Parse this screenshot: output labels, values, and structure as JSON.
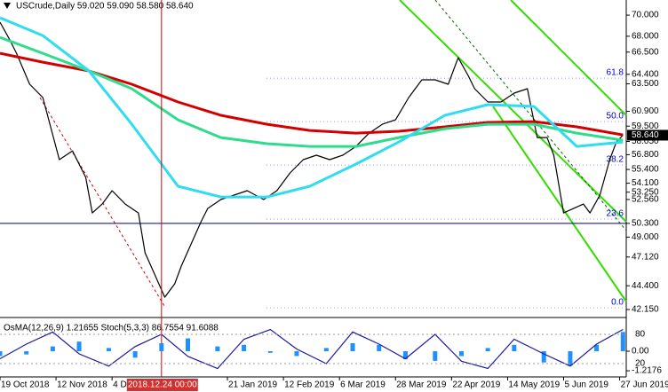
{
  "chart_data": [
    {
      "type": "line",
      "title": "USCrude,Daily  59.020 59.090 58.580 58.640",
      "xlim": [
        0,
        190
      ],
      "ylim": [
        41.48,
        71.43
      ],
      "xticks": [
        {
          "value": 0,
          "label": "19 Oct 2018"
        },
        {
          "value": 17,
          "label": "12 Nov 2018"
        },
        {
          "value": 34,
          "label": "4 Dec 2018"
        },
        {
          "value": 69,
          "label": "21 Jan 2019"
        },
        {
          "value": 86,
          "label": "12 Feb 2019"
        },
        {
          "value": 103,
          "label": "6 Mar 2019"
        },
        {
          "value": 120,
          "label": "28 Mar 2019"
        },
        {
          "value": 137,
          "label": "22 Apr 2019"
        },
        {
          "value": 154,
          "label": "14 May 2019"
        },
        {
          "value": 171,
          "label": "5 Jun 2019"
        },
        {
          "value": 188,
          "label": "27 Jun 2019"
        }
      ],
      "cursor": {
        "value": 49,
        "label": "2018.12.24 00:00"
      },
      "yticks": [
        {
          "value": 70,
          "label": "70.000"
        },
        {
          "value": 68,
          "label": "68.000"
        },
        {
          "value": 66.5,
          "label": "66.500"
        },
        {
          "value": 64.4,
          "label": "64.400"
        },
        {
          "value": 63.5,
          "label": "63.500"
        },
        {
          "value": 60.9,
          "label": "60.900"
        },
        {
          "value": 59.5,
          "label": "59.500"
        },
        {
          "value": 58.05,
          "label": "58.050"
        },
        {
          "value": 56.8,
          "label": "56.800"
        },
        {
          "value": 55.4,
          "label": "55.400"
        },
        {
          "value": 54.1,
          "label": "54.100"
        },
        {
          "value": 53.25,
          "label": "53.250"
        },
        {
          "value": 52.56,
          "label": "52.560"
        },
        {
          "value": 50.3,
          "label": "50.300"
        },
        {
          "value": 49,
          "label": "49.000"
        },
        {
          "value": 47.12,
          "label": "47.120"
        },
        {
          "value": 44.4,
          "label": "44.400"
        },
        {
          "value": 42.15,
          "label": "42.150"
        }
      ],
      "current_price": {
        "value": 58.64,
        "label": "58.640"
      },
      "support_level": 50.3,
      "fib_levels": [
        {
          "label": "61.8",
          "value": 64.04
        },
        {
          "label": "50.0",
          "value": 59.93
        },
        {
          "label": "38.2",
          "value": 55.82
        },
        {
          "label": "23.6",
          "value": 50.71
        },
        {
          "label": "0.0",
          "value": 42.32
        }
      ],
      "series": [
        {
          "name": "Close",
          "color": "#000000",
          "width": 1.2,
          "x": [
            0,
            3,
            5,
            9,
            13,
            18,
            22,
            26,
            28,
            31,
            34,
            38,
            42,
            44,
            47,
            50,
            53,
            55,
            58,
            61,
            63,
            67,
            71,
            75,
            80,
            84,
            88,
            92,
            96,
            100,
            104,
            108,
            112,
            116,
            120,
            124,
            128,
            132,
            136,
            139,
            142,
            144,
            148,
            152,
            156,
            160,
            163,
            166,
            168,
            171,
            174,
            177,
            179,
            182,
            185,
            187,
            189
          ],
          "values": [
            69.33,
            67.65,
            66.39,
            63.46,
            62.2,
            56.33,
            57.16,
            54.65,
            51.29,
            52.13,
            53.39,
            52.13,
            51.29,
            47.52,
            45.42,
            43.32,
            44.58,
            46.26,
            48.36,
            50.46,
            51.71,
            52.55,
            52.97,
            53.39,
            52.55,
            53.39,
            55.07,
            56.33,
            56.75,
            56.33,
            56.75,
            57.58,
            58.84,
            59.68,
            60.1,
            62.2,
            63.88,
            63.88,
            63.46,
            65.97,
            64.3,
            63.04,
            61.78,
            61.78,
            62.62,
            63.04,
            58.42,
            58.42,
            56.75,
            51.29,
            51.71,
            52.13,
            51.29,
            52.97,
            56.33,
            58.0,
            58.64
          ]
        },
        {
          "name": "EMA200",
          "color": "#d40000",
          "width": 3,
          "x": [
            0,
            13,
            27,
            40,
            54,
            67,
            81,
            94,
            108,
            121,
            135,
            148,
            162,
            175,
            189
          ],
          "values": [
            66.39,
            65.55,
            64.72,
            63.46,
            61.78,
            60.52,
            59.68,
            59.09,
            58.84,
            59.01,
            59.43,
            59.85,
            59.93,
            59.43,
            58.67
          ]
        },
        {
          "name": "EMA144",
          "color": "#2fdc8c",
          "width": 3,
          "x": [
            0,
            13,
            27,
            40,
            54,
            67,
            81,
            94,
            108,
            121,
            135,
            148,
            162,
            175,
            189
          ],
          "values": [
            67.9,
            66.39,
            64.72,
            63.04,
            60.1,
            58.42,
            57.84,
            57.58,
            57.58,
            58.42,
            59.26,
            59.68,
            59.68,
            58.84,
            58.17
          ]
        },
        {
          "name": "EMA50",
          "color": "#30dcf0",
          "width": 3,
          "x": [
            0,
            13,
            27,
            40,
            54,
            67,
            81,
            94,
            108,
            121,
            135,
            148,
            162,
            175,
            189
          ],
          "values": [
            69.75,
            68.07,
            64.72,
            59.68,
            53.81,
            52.8,
            52.8,
            53.81,
            55.91,
            58.0,
            60.52,
            61.53,
            61.36,
            57.58,
            58.0
          ]
        }
      ]
    },
    {
      "type": "oscillator",
      "title": "OsMA(12,26,9) 1.21655  Stoch(5,3,3) 86.7554 91.6088",
      "xlim": [
        0,
        190
      ],
      "ylim": [
        0,
        100
      ],
      "yticks": [
        80,
        20
      ],
      "y2lim": [
        -1.38,
        1.66
      ],
      "y2ticks": [
        {
          "value": 0,
          "label": "0.00"
        },
        {
          "value": -1.2176,
          "label": "-1.2176"
        }
      ],
      "series": [
        {
          "name": "OsMA",
          "color": "#1e90ff",
          "axis": "y2",
          "x": [
            0,
            8,
            16,
            24,
            33,
            41,
            49,
            57,
            66,
            74,
            82,
            90,
            99,
            107,
            115,
            123,
            132,
            140,
            148,
            156,
            165,
            173,
            181,
            189
          ],
          "values": [
            -0.3,
            -0.2,
            0.3,
            0.6,
            0.2,
            -0.4,
            0.5,
            0.8,
            0.3,
            0.4,
            -0.1,
            -0.3,
            0.2,
            0.5,
            0.4,
            -0.5,
            -0.6,
            -0.3,
            0.2,
            0.4,
            -0.7,
            -0.9,
            0.4,
            1.2
          ]
        },
        {
          "name": "Stoch",
          "color": "#1a1aa0",
          "x": [
            0,
            8,
            16,
            24,
            33,
            41,
            49,
            57,
            66,
            74,
            82,
            90,
            99,
            107,
            115,
            123,
            132,
            140,
            148,
            156,
            165,
            173,
            181,
            189
          ],
          "values": [
            30,
            60,
            85,
            40,
            15,
            55,
            80,
            35,
            10,
            70,
            90,
            50,
            20,
            85,
            60,
            30,
            80,
            25,
            10,
            70,
            40,
            15,
            60,
            90
          ]
        }
      ]
    }
  ]
}
